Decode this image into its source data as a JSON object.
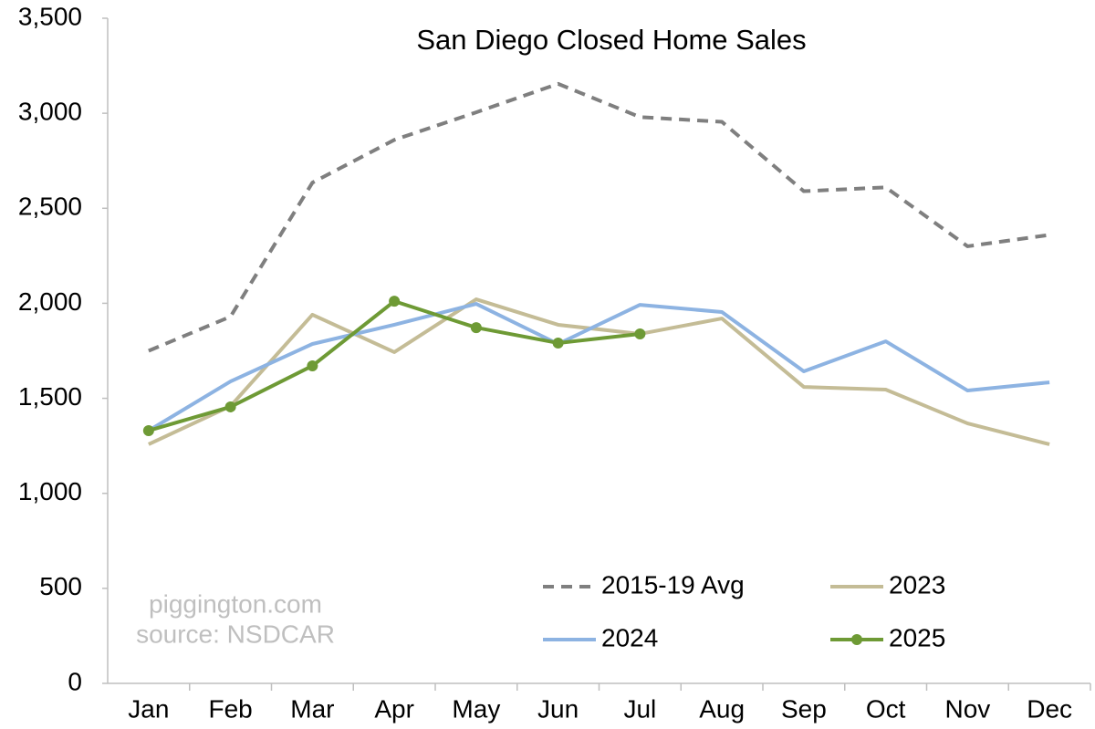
{
  "chart_data": {
    "type": "line",
    "title": "San Diego Closed Home Sales",
    "categories": [
      "Jan",
      "Feb",
      "Mar",
      "Apr",
      "May",
      "Jun",
      "Jul",
      "Aug",
      "Sep",
      "Oct",
      "Nov",
      "Dec"
    ],
    "series": [
      {
        "name": "2015-19 Avg",
        "color": "#7f7f7f",
        "dashed": true,
        "values": [
          1750,
          1930,
          2635,
          2860,
          3005,
          3155,
          2980,
          2955,
          2590,
          2610,
          2300,
          2360
        ]
      },
      {
        "name": "2023",
        "color": "#c4bc96",
        "values": [
          1258,
          1459,
          1940,
          1743,
          2021,
          1887,
          1839,
          1920,
          1560,
          1546,
          1368,
          1258
        ]
      },
      {
        "name": "2024",
        "color": "#8db3e2",
        "values": [
          1330,
          1589,
          1786,
          1887,
          1997,
          1786,
          1992,
          1954,
          1642,
          1800,
          1541,
          1584
        ]
      },
      {
        "name": "2025",
        "color": "#6e9a35",
        "markers": true,
        "values": [
          1330,
          1455,
          1671,
          2011,
          1872,
          1791,
          1839,
          null,
          null,
          null,
          null,
          null
        ]
      }
    ],
    "ylim": [
      0,
      3500
    ],
    "yticks": [
      0,
      500,
      {
        "value": 1000,
        "label": "1,000"
      },
      {
        "value": 1500,
        "label": "1,500"
      },
      {
        "value": 2000,
        "label": "2,000"
      },
      {
        "value": 2500,
        "label": "2,500"
      },
      {
        "value": 3000,
        "label": "3,000"
      },
      {
        "value": 3500,
        "label": "3,500"
      }
    ],
    "annotations": [
      "piggington.com",
      "source: NSDCAR"
    ],
    "legend": "lower-right",
    "grid": false
  }
}
